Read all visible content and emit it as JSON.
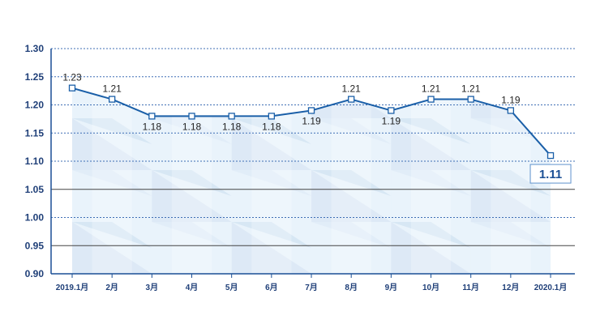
{
  "chart_data": {
    "type": "line",
    "title": "",
    "xlabel": "",
    "ylabel": "",
    "categories": [
      "2019.1月",
      "2月",
      "3月",
      "4月",
      "5月",
      "6月",
      "7月",
      "8月",
      "9月",
      "10月",
      "11月",
      "12月",
      "2020.1月"
    ],
    "values": [
      1.23,
      1.21,
      1.18,
      1.18,
      1.18,
      1.18,
      1.19,
      1.21,
      1.19,
      1.21,
      1.21,
      1.19,
      1.11
    ],
    "data_labels": [
      "1.23",
      "1.21",
      "1.18",
      "1.18",
      "1.18",
      "1.18",
      "1.19",
      "1.21",
      "1.19",
      "1.21",
      "1.21",
      "1.19",
      "1.11"
    ],
    "ylim": [
      0.9,
      1.3
    ],
    "yticks": [
      "1.30",
      "1.25",
      "1.20",
      "1.15",
      "1.10",
      "1.05",
      "1.00",
      "0.95",
      "0.90"
    ],
    "grid": true,
    "legend": "none",
    "colors": {
      "line": "#1a5fa8",
      "axis_text": "#1f3f78",
      "solid_grid": "#444444",
      "dotted_grid": "#3f6fb5",
      "area_light": "#e9f3fb",
      "area_mid": "#dbe8f5",
      "area_dark": "#c9dcef"
    }
  }
}
